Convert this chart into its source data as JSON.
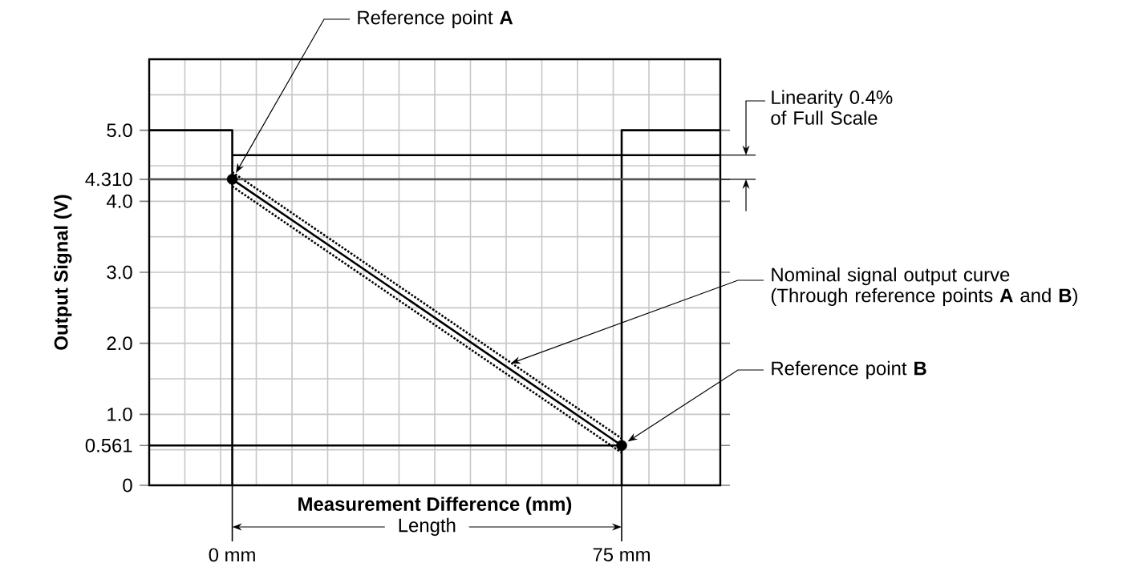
{
  "chart_data": {
    "type": "line",
    "xlabel": "Measurement Difference (mm)",
    "ylabel": "Output Signal (V)",
    "xlim": [
      -16,
      94
    ],
    "ylim": [
      0,
      6
    ],
    "xticks": [
      {
        "value": 0,
        "label": "0 mm"
      },
      {
        "value": 75,
        "label": "75 mm"
      }
    ],
    "yticks": [
      0,
      0.561,
      {
        "value": 1,
        "label": "1.0"
      },
      {
        "value": 2,
        "label": "2.0"
      },
      {
        "value": 3,
        "label": "3.0"
      },
      {
        "value": 4,
        "label": "4.0"
      },
      {
        "value": 4.31,
        "label": "4.310"
      },
      {
        "value": 5,
        "label": "5.0"
      }
    ],
    "grid": true,
    "series": [
      {
        "color": "#000000",
        "line_style": "solid",
        "marker": "none",
        "x": [
          0,
          75
        ],
        "values": [
          4.31,
          0.561
        ]
      },
      {
        "color": "#000000",
        "line_style": "dotted",
        "marker": "none",
        "x": [
          0,
          75
        ],
        "values": [
          4.41,
          0.66
        ]
      },
      {
        "color": "#000000",
        "line_style": "dotted",
        "marker": "none",
        "x": [
          0,
          75
        ],
        "values": [
          4.21,
          0.46
        ]
      },
      {
        "color": "#000000",
        "line_style": "solid",
        "marker": "none",
        "x": [
          -16,
          0,
          0
        ],
        "values": [
          5,
          5,
          0
        ]
      },
      {
        "color": "#000000",
        "line_style": "solid",
        "marker": "none",
        "x": [
          75,
          75,
          94
        ],
        "values": [
          0,
          5,
          5
        ]
      },
      {
        "color": "#555555",
        "line_style": "solid",
        "marker": "none",
        "x": [
          -16,
          94
        ],
        "values": [
          4.31,
          4.31
        ]
      },
      {
        "color": "#000000",
        "line_style": "solid",
        "marker": "none",
        "x": [
          0,
          94
        ],
        "values": [
          4.65,
          4.65
        ]
      },
      {
        "color": "#000000",
        "line_style": "solid",
        "marker": "none",
        "x": [
          -16,
          75
        ],
        "values": [
          0.561,
          0.561
        ]
      },
      {
        "type": "scatter",
        "color": "#000000",
        "marker": "circle",
        "x": [
          0,
          75
        ],
        "values": [
          4.31,
          0.561
        ]
      }
    ],
    "annotations": [
      {
        "text": "Reference point **A**",
        "x": 0,
        "y": 4.31
      },
      "Nominal signal output curve (Through reference points **A** and **B**)",
      {
        "text": "Reference point **B**",
        "x": 75,
        "y": 0.561
      },
      "Linearity 0.4% of Full Scale",
      "Length"
    ]
  }
}
